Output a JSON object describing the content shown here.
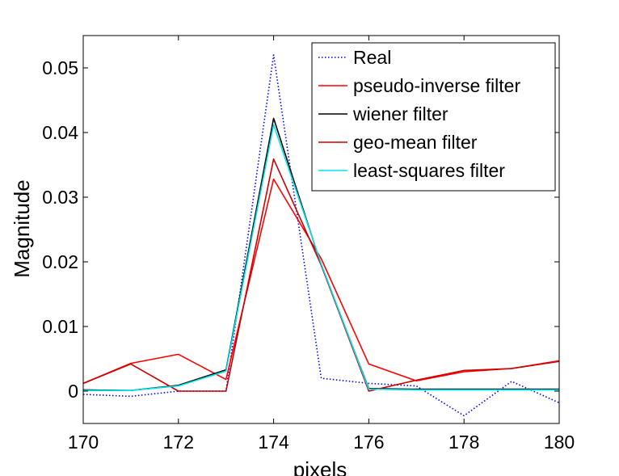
{
  "chart_data": {
    "type": "line",
    "xlabel": "pixels",
    "ylabel": "Magnitude",
    "xlim": [
      170,
      180
    ],
    "ylim": [
      -0.005,
      0.055
    ],
    "xticks": [
      170,
      172,
      174,
      176,
      178,
      180
    ],
    "yticks": [
      0,
      0.01,
      0.02,
      0.03,
      0.04,
      0.05
    ],
    "ytick_labels": [
      "0",
      "0.01",
      "0.02",
      "0.03",
      "0.04",
      "0.05"
    ],
    "grid": false,
    "legend_position": "top-right",
    "x": [
      170,
      171,
      172,
      173,
      174,
      175,
      176,
      177,
      178,
      179,
      180
    ],
    "series": [
      {
        "name": "Real",
        "color": "#0000ff",
        "style": "dotted",
        "values": [
          -0.0005,
          -0.0008,
          0.0,
          0.0,
          0.052,
          0.002,
          0.0012,
          0.0008,
          -0.0038,
          0.0015,
          -0.0018
        ]
      },
      {
        "name": "pseudo-inverse filter",
        "color": "#ff0000",
        "style": "solid",
        "values": [
          0.0012,
          0.0043,
          0.0057,
          0.0018,
          0.0328,
          0.0205,
          0.0042,
          0.0016,
          0.003,
          0.0035,
          0.0047
        ]
      },
      {
        "name": "wiener filter",
        "color": "#000000",
        "style": "solid",
        "values": [
          0.0002,
          0.0001,
          0.0009,
          0.0033,
          0.0422,
          0.0195,
          0.0004,
          0.0003,
          0.0003,
          0.0003,
          0.0003
        ]
      },
      {
        "name": "geo-mean filter",
        "color": "#cc0000",
        "style": "solid",
        "values": [
          0.0012,
          0.0042,
          0.0,
          0.0,
          0.0359,
          0.0195,
          0.0,
          0.0017,
          0.0032,
          0.0035,
          0.0046
        ]
      },
      {
        "name": "least-squares filter",
        "color": "#00e5ee",
        "style": "solid",
        "values": [
          0.0001,
          0.0001,
          0.0008,
          0.0031,
          0.0412,
          0.0197,
          0.0003,
          0.0002,
          0.0002,
          0.0002,
          0.0002
        ]
      }
    ]
  }
}
